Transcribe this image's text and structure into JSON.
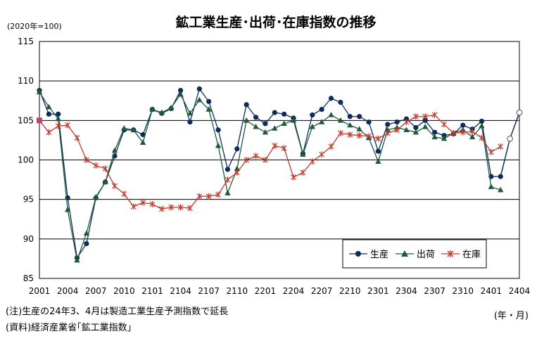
{
  "chart_data": {
    "type": "line",
    "title": "鉱工業生産･出荷･在庫指数の推移",
    "unit_label": "(2020年=100)",
    "xlabel": "(年・月)",
    "ylim": [
      85,
      115
    ],
    "yticks": [
      85,
      90,
      95,
      100,
      105,
      110,
      115
    ],
    "grid": true,
    "legend_position": "bottom-right",
    "x_tick_labels": [
      "2001",
      "2004",
      "2007",
      "2010",
      "2101",
      "2104",
      "2107",
      "2110",
      "2201",
      "2204",
      "2207",
      "2210",
      "2301",
      "2304",
      "2307",
      "2310",
      "2401",
      "2404"
    ],
    "x": [
      "2001",
      "2002",
      "2003",
      "2004",
      "2005",
      "2006",
      "2007",
      "2008",
      "2009",
      "2010",
      "2011",
      "2012",
      "2101",
      "2102",
      "2103",
      "2104",
      "2105",
      "2106",
      "2107",
      "2108",
      "2109",
      "2110",
      "2111",
      "2112",
      "2201",
      "2202",
      "2203",
      "2204",
      "2205",
      "2206",
      "2207",
      "2208",
      "2209",
      "2210",
      "2211",
      "2212",
      "2301",
      "2302",
      "2303",
      "2304",
      "2305",
      "2306",
      "2307",
      "2308",
      "2309",
      "2310",
      "2311",
      "2312",
      "2401",
      "2402",
      "2403",
      "2404"
    ],
    "series": [
      {
        "name": "生産",
        "color": "#0d2b5e",
        "marker": "circle",
        "values": [
          108.8,
          105.8,
          105.8,
          95.2,
          87.6,
          89.4,
          95.2,
          97.2,
          100.5,
          103.8,
          103.8,
          103.2,
          106.4,
          105.9,
          106.5,
          108.8,
          104.8,
          109.0,
          107.4,
          103.8,
          98.8,
          101.4,
          107.0,
          105.4,
          104.6,
          106.0,
          105.8,
          105.3,
          100.8,
          105.7,
          106.4,
          107.8,
          107.3,
          105.5,
          105.5,
          104.8,
          101.1,
          104.5,
          104.8,
          105.2,
          104.1,
          105.0,
          103.5,
          103.1,
          103.3,
          104.4,
          103.9,
          104.9,
          97.9,
          97.9,
          102.7,
          106.0
        ]
      },
      {
        "name": "出荷",
        "color": "#1f5a3a",
        "marker": "triangle",
        "values": [
          108.6,
          106.7,
          105.2,
          93.7,
          87.3,
          90.7,
          95.3,
          97.2,
          101.2,
          104.0,
          103.8,
          102.2,
          106.4,
          106.0,
          106.6,
          108.3,
          105.9,
          107.6,
          106.4,
          101.8,
          95.8,
          98.9,
          105.0,
          104.2,
          103.5,
          104.0,
          104.6,
          105.0,
          100.7,
          104.2,
          104.8,
          105.7,
          105.0,
          104.4,
          103.9,
          102.8,
          99.8,
          103.8,
          104.1,
          103.8,
          103.5,
          104.2,
          102.9,
          102.7,
          103.4,
          103.8,
          102.9,
          104.3,
          96.6,
          96.2,
          null,
          null
        ]
      },
      {
        "name": "在庫",
        "color": "#c0392b",
        "marker": "x",
        "values": [
          105.0,
          103.5,
          104.3,
          104.4,
          102.8,
          100.0,
          99.3,
          98.9,
          96.7,
          95.7,
          94.1,
          94.6,
          94.4,
          93.8,
          94.0,
          94.0,
          93.9,
          95.4,
          95.4,
          95.6,
          97.5,
          98.4,
          100.0,
          100.5,
          100.0,
          101.8,
          101.5,
          97.8,
          98.4,
          99.8,
          100.7,
          101.7,
          103.4,
          103.2,
          103.1,
          103.0,
          102.7,
          103.4,
          103.8,
          104.8,
          105.5,
          105.5,
          105.7,
          104.5,
          103.4,
          103.5,
          103.6,
          102.8,
          101.0,
          101.7,
          null,
          null
        ]
      }
    ]
  },
  "notes": {
    "note1": "(注)生産の24年3、4月は製造工業生産予測指数で延長",
    "note2": "(資料)経済産業省｢鉱工業指数｣"
  }
}
